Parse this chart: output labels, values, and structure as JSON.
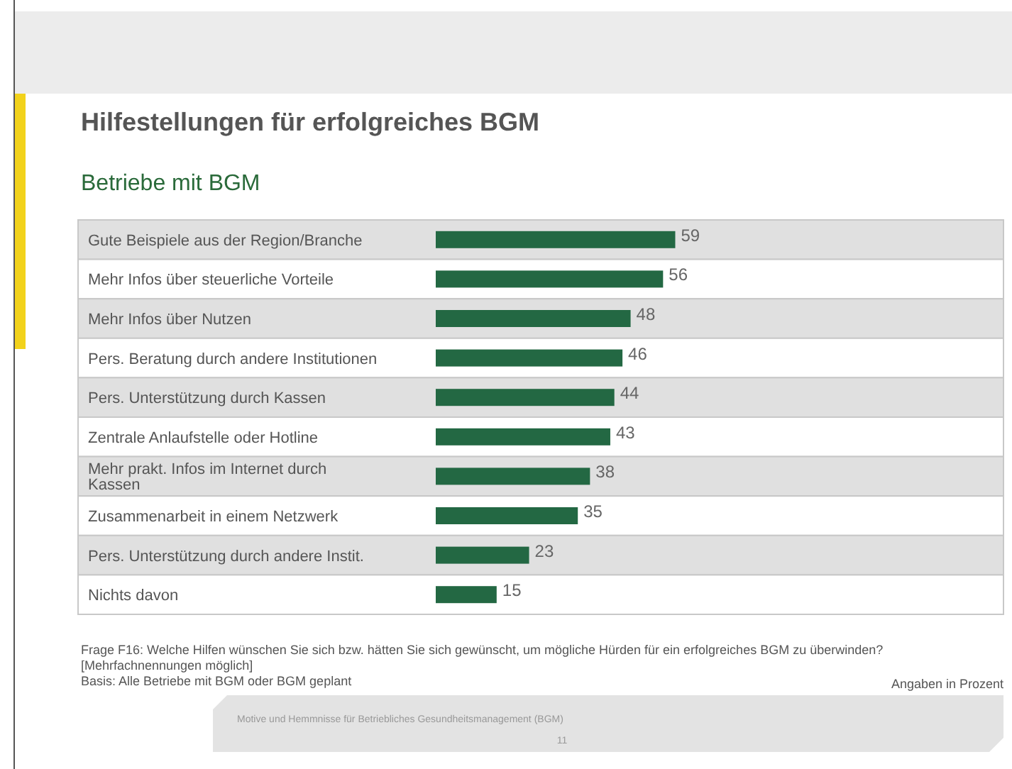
{
  "chart_data": {
    "type": "bar",
    "orientation": "horizontal",
    "title": "Hilfestellungen für erfolgreiches BGM",
    "subtitle": "Betriebe mit BGM",
    "categories": [
      "Gute Beispiele aus der Region/Branche",
      "Mehr Infos über steuerliche Vorteile",
      "Mehr Infos über Nutzen",
      "Pers. Beratung durch andere Institutionen",
      "Pers. Unterstützung durch Kassen",
      "Zentrale Anlaufstelle oder Hotline",
      "Mehr prakt. Infos im Internet durch Kassen",
      "Zusammenarbeit in einem Netzwerk",
      "Pers. Unterstützung durch andere Instit.",
      "Nichts davon"
    ],
    "values": [
      59,
      56,
      48,
      46,
      44,
      43,
      38,
      35,
      23,
      15
    ],
    "color": "#236843",
    "data_labels": true,
    "annotations": [
      "Frage F16: Welche Hilfen wünschen Sie sich bzw. hätten Sie sich gewünscht, um mögliche Hürden für ein erfolgreiches BGM zu überwinden?",
      "[Mehrfachnennungen möglich]",
      "Basis: Alle Betriebe mit BGM oder BGM geplant",
      "Angaben in Prozent",
      "Motive und Hemmnisse für Betriebliches Gesundheitsmanagement (BGM)",
      "11"
    ]
  }
}
